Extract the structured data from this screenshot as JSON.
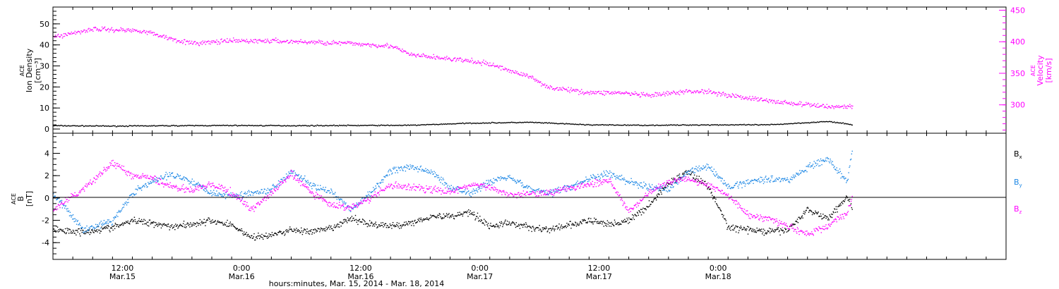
{
  "chart_data": [
    {
      "type": "scatter",
      "ylabel_left": [
        "ACE",
        "Ion Density",
        "[cm⁻³]"
      ],
      "ylabel_right": [
        "ACE",
        "Velocity",
        "[km/s]"
      ],
      "ylim_left": [
        -2,
        58
      ],
      "ylim_right": [
        255,
        455
      ],
      "yticks_left": [
        "0",
        "10",
        "20",
        "30",
        "40",
        "50"
      ],
      "yticks_right": [
        "300",
        "350",
        "400",
        "450"
      ],
      "series": [
        {
          "axis": "left",
          "color": "#000000",
          "x": [
            0,
            6,
            12,
            18,
            24,
            30,
            36,
            42,
            48,
            54,
            60,
            66,
            72,
            78,
            80.5
          ],
          "y": [
            1.8,
            1.6,
            1.8,
            1.9,
            1.8,
            1.9,
            2.0,
            3.0,
            3.4,
            2.2,
            2.0,
            2.2,
            2.2,
            3.8,
            2.3
          ]
        },
        {
          "axis": "right",
          "color": "#ff00ff",
          "x": [
            0,
            4,
            9,
            12,
            14,
            18,
            22,
            26,
            30,
            34,
            36,
            39,
            42,
            44,
            46,
            48,
            50,
            52,
            54,
            57,
            60,
            64,
            66,
            68,
            72,
            75,
            78,
            80.5
          ],
          "y": [
            408,
            421,
            418,
            405,
            398,
            402,
            402,
            400,
            398,
            394,
            380,
            375,
            370,
            365,
            355,
            345,
            328,
            324,
            320,
            320,
            315,
            322,
            322,
            316,
            307,
            302,
            298,
            298
          ]
        }
      ]
    },
    {
      "type": "scatter",
      "ylabel": [
        "ACE",
        "B",
        "[nT]"
      ],
      "ylim": [
        -5.5,
        5.8
      ],
      "yticks": [
        "-4",
        "-2",
        "0",
        "2",
        "4"
      ],
      "legend_placement": "right",
      "legend": [
        {
          "label": "B",
          "sub": "x",
          "color": "#000000"
        },
        {
          "label": "B",
          "sub": "y",
          "color": "#1e88e5"
        },
        {
          "label": "B",
          "sub": "z",
          "color": "#ff00ff"
        }
      ],
      "series": [
        {
          "name": "Bx",
          "color": "#000000",
          "x": [
            0,
            3,
            6,
            8,
            10,
            12,
            14,
            16,
            18,
            20,
            22,
            24,
            26,
            28,
            30,
            32,
            34,
            36,
            38,
            40,
            42,
            44,
            46,
            48,
            50,
            52,
            54,
            56,
            58,
            60,
            62,
            64,
            66,
            68,
            70,
            72,
            74,
            76,
            78,
            80,
            80.5
          ],
          "y": [
            -2.8,
            -3.0,
            -2.6,
            -2.0,
            -2.2,
            -2.5,
            -2.3,
            -2.0,
            -2.4,
            -3.5,
            -3.3,
            -2.8,
            -3.0,
            -2.7,
            -1.8,
            -2.3,
            -2.5,
            -2.2,
            -1.6,
            -1.6,
            -1.2,
            -2.5,
            -2.2,
            -2.6,
            -2.8,
            -2.4,
            -2.0,
            -2.3,
            -2.0,
            -0.6,
            1.4,
            2.4,
            1.0,
            -2.6,
            -2.8,
            -3.0,
            -2.8,
            -1.0,
            -1.8,
            0.2,
            -1.0
          ]
        },
        {
          "name": "By",
          "color": "#1e88e5",
          "x": [
            0,
            3,
            6,
            8,
            10,
            12,
            14,
            16,
            18,
            20,
            22,
            24,
            26,
            28,
            30,
            32,
            34,
            36,
            38,
            40,
            42,
            44,
            46,
            48,
            50,
            52,
            54,
            56,
            58,
            60,
            62,
            64,
            66,
            68,
            70,
            72,
            74,
            76,
            78,
            80,
            80.5
          ],
          "y": [
            0.4,
            -2.8,
            -2.0,
            0.5,
            1.5,
            2.2,
            1.5,
            0.5,
            0.2,
            0.5,
            0.8,
            2.5,
            1.2,
            0.5,
            -1.0,
            0.5,
            2.5,
            2.8,
            2.4,
            1.0,
            0.5,
            1.5,
            2.0,
            0.8,
            0.5,
            1.0,
            1.8,
            2.2,
            1.5,
            1.0,
            0.8,
            2.5,
            2.8,
            1.0,
            1.5,
            1.8,
            1.6,
            2.8,
            3.5,
            1.5,
            4.6
          ]
        },
        {
          "name": "Bz",
          "color": "#ff00ff",
          "x": [
            0,
            3,
            6,
            8,
            10,
            12,
            14,
            16,
            18,
            20,
            22,
            24,
            26,
            28,
            30,
            32,
            34,
            36,
            38,
            40,
            42,
            44,
            46,
            48,
            50,
            52,
            54,
            56,
            58,
            60,
            62,
            64,
            66,
            68,
            70,
            72,
            74,
            76,
            78,
            80,
            80.5
          ],
          "y": [
            -1.0,
            0.8,
            3.2,
            2.0,
            1.8,
            1.0,
            0.8,
            1.2,
            0.5,
            -1.0,
            0.5,
            2.2,
            0.5,
            -0.6,
            -0.8,
            0.0,
            1.2,
            1.0,
            0.8,
            0.6,
            1.2,
            1.0,
            0.3,
            0.5,
            0.5,
            1.0,
            1.2,
            1.6,
            -1.2,
            0.5,
            1.5,
            1.8,
            1.2,
            0.3,
            -1.5,
            -1.8,
            -2.5,
            -3.2,
            -2.5,
            -1.2,
            0.2
          ]
        }
      ]
    }
  ],
  "x_axis": {
    "range_hours": [
      0,
      96
    ],
    "ticks": [
      {
        "h": 7,
        "time": "12:00",
        "date": "Mar.15"
      },
      {
        "h": 19,
        "time": "0:00",
        "date": "Mar.16"
      },
      {
        "h": 31,
        "time": "12:00",
        "date": "Mar.16"
      },
      {
        "h": 43,
        "time": "0:00",
        "date": "Mar.17"
      },
      {
        "h": 55,
        "time": "12:00",
        "date": "Mar.17"
      },
      {
        "h": 67,
        "time": "0:00",
        "date": "Mar.18"
      }
    ],
    "label": "hours:minutes, Mar. 15, 2014 - Mar. 18, 2014"
  }
}
